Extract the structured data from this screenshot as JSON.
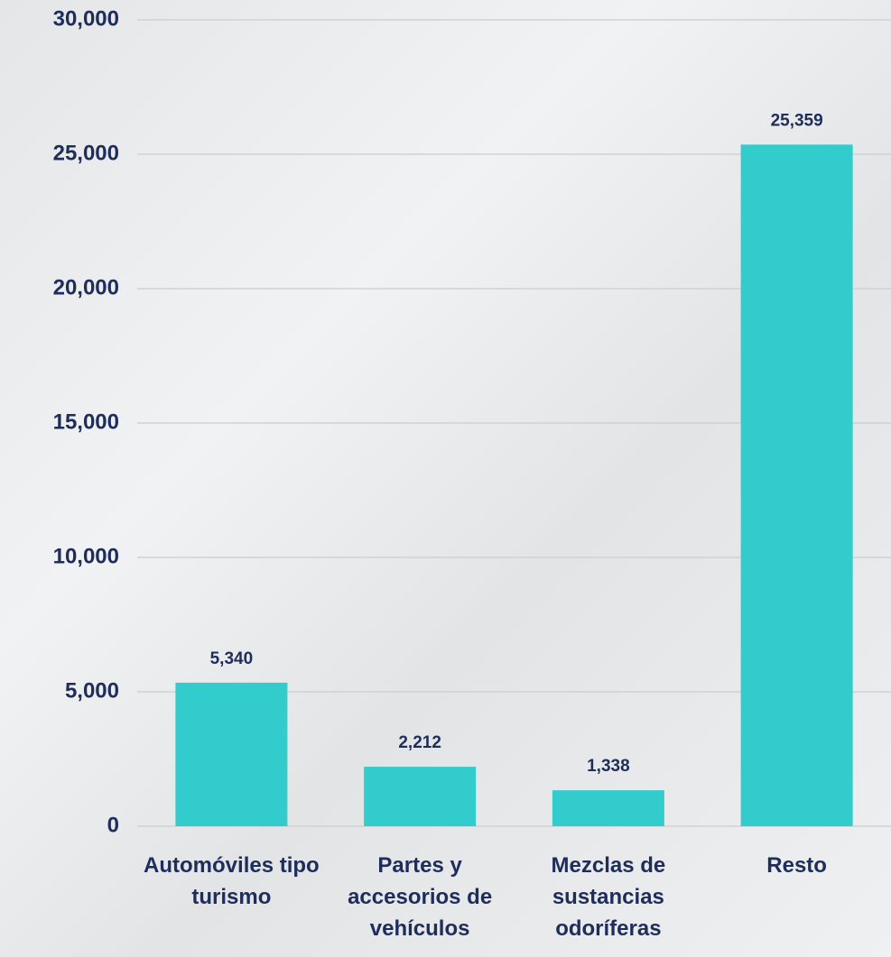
{
  "chart_data": {
    "type": "bar",
    "categories": [
      "Automóviles tipo turismo",
      "Partes y accesorios de vehículos",
      "Mezclas de sustancias odoríferas",
      "Resto"
    ],
    "values": [
      5340,
      2212,
      1338,
      25359
    ],
    "value_labels": [
      "5,340",
      "2,212",
      "1,338",
      "25,359"
    ],
    "color": "#33cccc",
    "ylim": [
      0,
      30000
    ],
    "yticks": [
      0,
      {
        "value": 5000,
        "label": "5,000"
      },
      {
        "value": 10000,
        "label": "10,000"
      },
      {
        "value": 15000,
        "label": "15,000"
      },
      {
        "value": 20000,
        "label": "20,000"
      },
      {
        "value": 25000,
        "label": "25,000"
      },
      {
        "value": 30000,
        "label": "30,000"
      }
    ],
    "grid": true
  }
}
